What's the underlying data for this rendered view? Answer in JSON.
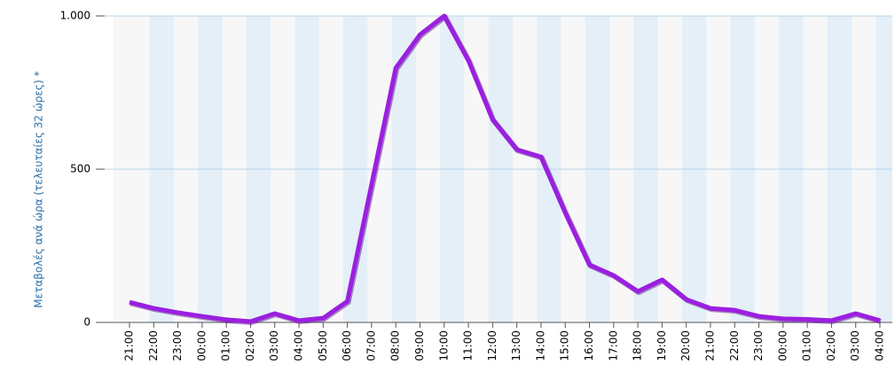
{
  "chart_data": {
    "type": "line",
    "y_label": "Μεταβολές ανά ώρα (τελευταίες 32 ώρες) *",
    "categories": [
      "21:00",
      "22:00",
      "23:00",
      "00:00",
      "01:00",
      "02:00",
      "03:00",
      "04:00",
      "05:00",
      "06:00",
      "07:00",
      "08:00",
      "09:00",
      "10:00",
      "11:00",
      "12:00",
      "13:00",
      "14:00",
      "15:00",
      "16:00",
      "17:00",
      "18:00",
      "19:00",
      "20:00",
      "21:00",
      "22:00",
      "23:00",
      "00:00",
      "01:00",
      "02:00",
      "03:00",
      "04:00"
    ],
    "series": [
      {
        "name": "Μεταβολές",
        "color": "#9b1fe0",
        "values": [
          66,
          46,
          32,
          20,
          9,
          3,
          29,
          6,
          14,
          69,
          450,
          830,
          939,
          1000,
          855,
          662,
          564,
          540,
          358,
          188,
          153,
          101,
          139,
          75,
          46,
          40,
          20,
          12,
          10,
          6,
          29,
          6
        ]
      }
    ],
    "ylim": [
      0,
      1000
    ],
    "yticks": [
      0,
      500,
      {
        "value": 1000,
        "label": "1.000"
      }
    ],
    "grid": true
  }
}
